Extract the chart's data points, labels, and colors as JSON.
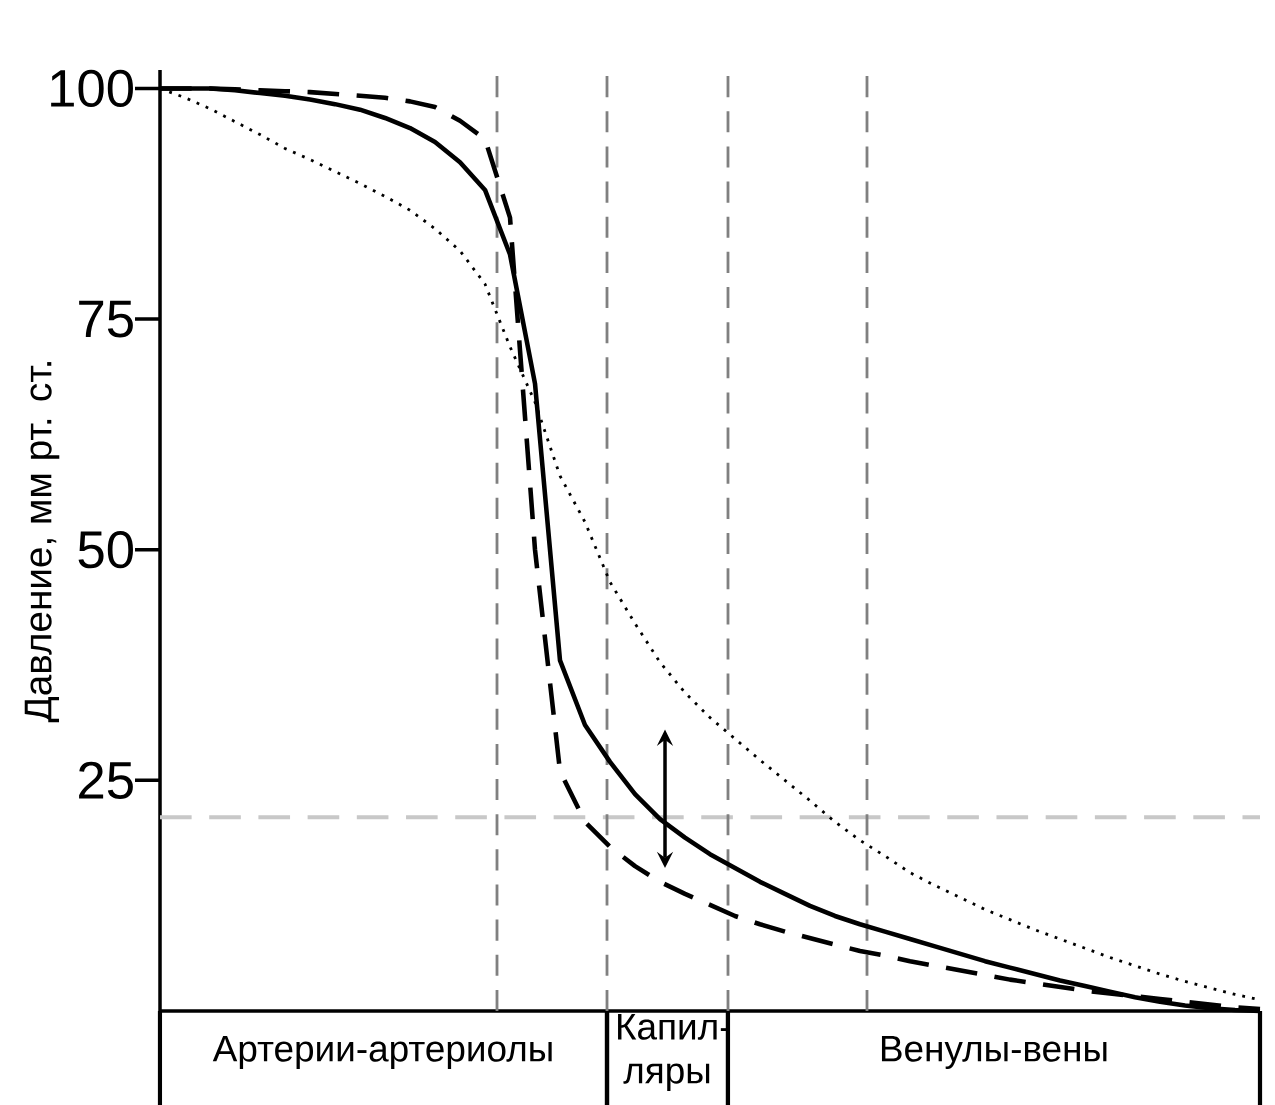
{
  "chart_data": {
    "type": "line",
    "ylabel": "Давление, мм рт. ст.",
    "categories": [
      null,
      null,
      null,
      null,
      null,
      null,
      null,
      null,
      null,
      null,
      null,
      null,
      null,
      null,
      null,
      null,
      null,
      null,
      null,
      null,
      null,
      null,
      null,
      null,
      null,
      null,
      null,
      null,
      null,
      null,
      null,
      null,
      null,
      null,
      null,
      null,
      null,
      null,
      null,
      null,
      null,
      null,
      null,
      null,
      null
    ],
    "ylim": [
      0,
      102
    ],
    "yticks": [
      25,
      50,
      75,
      100
    ],
    "tick_labels": "y",
    "grid": false,
    "series": [
      {
        "color": "#000000",
        "line_style": "solid",
        "values": [
          100,
          100,
          100,
          99.8,
          99.5,
          99.2,
          98.8,
          98.3,
          97.7,
          96.8,
          95.7,
          94.2,
          92,
          89,
          82,
          68,
          38,
          31,
          27,
          23.5,
          20.8,
          18.8,
          17,
          15.5,
          14,
          12.7,
          11.4,
          10.3,
          9.4,
          8.6,
          7.8,
          7,
          6.2,
          5.4,
          4.7,
          4,
          3.3,
          2.7,
          2.1,
          1.5,
          1,
          0.6,
          0.3,
          0.1,
          0
        ]
      },
      {
        "color": "#000000",
        "line_style": "dashed",
        "values": [
          100,
          100,
          100,
          99.9,
          99.8,
          99.7,
          99.6,
          99.4,
          99.2,
          99,
          98.6,
          98,
          96.5,
          94.5,
          86,
          50,
          26,
          20.5,
          17.8,
          15.7,
          14,
          12.7,
          11.5,
          10.3,
          9.4,
          8.6,
          7.9,
          7.2,
          6.5,
          6,
          5.4,
          4.9,
          4.4,
          3.9,
          3.4,
          3,
          2.6,
          2.2,
          1.9,
          1.6,
          1.3,
          1,
          0.7,
          0.4,
          0.2
        ]
      },
      {
        "color": "#000000",
        "line_style": "dotted",
        "values": [
          100,
          99,
          97.8,
          96.4,
          95,
          93.5,
          92.3,
          91,
          89.7,
          88.3,
          86.8,
          84.8,
          82.4,
          78.8,
          72,
          66,
          58,
          53,
          46.5,
          42,
          37.8,
          34.5,
          31.8,
          29.5,
          27.2,
          25,
          22.8,
          20.5,
          18.5,
          16.8,
          15,
          13.6,
          12.3,
          11,
          9.9,
          8.8,
          7.8,
          6.8,
          5.8,
          4.9,
          4,
          3.2,
          2.5,
          1.8,
          1.2
        ]
      }
    ],
    "ref_lines": [
      {
        "axis": "y",
        "value": 21,
        "color": "#c8c8c8",
        "line_style": "dashed"
      }
    ],
    "annotations": [
      "Артерии-артериолы",
      "Капил-ляры",
      "Венулы-вены"
    ]
  }
}
